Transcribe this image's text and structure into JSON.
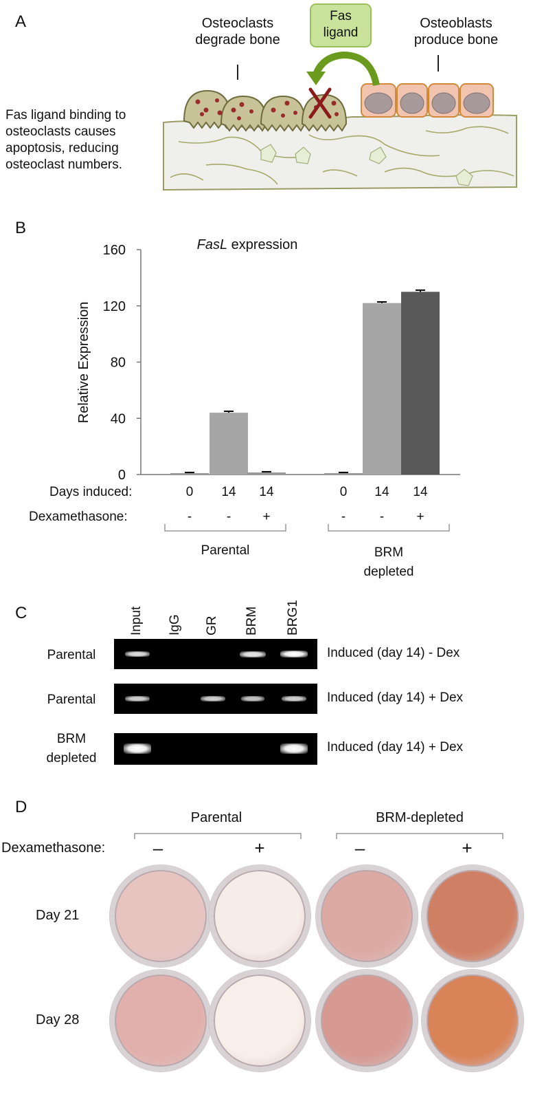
{
  "panelA": {
    "letter": "A",
    "osteoclasts_label": [
      "Osteoclasts",
      "degrade bone"
    ],
    "fas_label": [
      "Fas",
      "ligand"
    ],
    "osteoblasts_label": [
      "Osteoblasts",
      "produce bone"
    ],
    "description": [
      "Fas ligand binding to",
      "osteoclasts causes",
      "apoptosis, reducing",
      "osteoclast numbers."
    ],
    "colors": {
      "osteoclast": "#c9c39a",
      "osteoclast_dot": "#9a2b2b",
      "osteoblast": "#f1c4b0",
      "arrow": "#6a9a1e",
      "fas_box": "#c9e39a",
      "cross": "#8b1a1a"
    }
  },
  "panelB": {
    "letter": "B",
    "rows": {
      "days_label": "Days induced:",
      "dex_label": "Dexamethasone:",
      "days": [
        "0",
        "14",
        "14",
        "0",
        "14",
        "14"
      ],
      "dex": [
        "-",
        "-",
        "+",
        "-",
        "-",
        "+"
      ]
    },
    "groups": {
      "parental": "Parental",
      "brm": [
        "BRM",
        "depleted"
      ]
    }
  },
  "chart_data": {
    "type": "bar",
    "title_italic": "FasL",
    "title_rest": " expression",
    "ylabel": "Relative Expression",
    "ylim": [
      0,
      160
    ],
    "yticks": [
      "0",
      "40",
      "80",
      "120",
      "160"
    ],
    "values": [
      1,
      44,
      1.5,
      1,
      122,
      130
    ],
    "errors": [
      0.5,
      1,
      0.5,
      0.5,
      0.8,
      1.2
    ],
    "colors": [
      "#999999",
      "#a6a6a6",
      "#999999",
      "#999999",
      "#a6a6a6",
      "#595959"
    ]
  },
  "panelC": {
    "letter": "C",
    "lanes": [
      "Input",
      "IgG",
      "GR",
      "BRM",
      "BRG1"
    ],
    "rows": [
      {
        "left": [
          "Parental"
        ],
        "right": "Induced (day 14) - Dex",
        "bands": [
          0.7,
          0,
          0,
          0.8,
          1.0
        ]
      },
      {
        "left": [
          "Parental"
        ],
        "right": "Induced (day 14) + Dex",
        "bands": [
          0.6,
          0,
          0.6,
          0.5,
          0.6
        ]
      },
      {
        "left": [
          "BRM",
          "depleted"
        ],
        "right": "Induced (day 14) + Dex",
        "bands": [
          1.0,
          0,
          0,
          0,
          1.0
        ]
      }
    ]
  },
  "panelD": {
    "letter": "D",
    "group_parental": "Parental",
    "group_brm": "BRM-depleted",
    "dex_label": "Dexamethasone:",
    "dex_signs": [
      "–",
      "+",
      "–",
      "+"
    ],
    "rows": [
      {
        "label": "Day 21",
        "colors": [
          "#e7c4c0",
          "#f6ece8",
          "#dcaaa3",
          "#cf7f63"
        ]
      },
      {
        "label": "Day 28",
        "colors": [
          "#e2b0ac",
          "#f8efea",
          "#d69a93",
          "#d88358"
        ]
      }
    ]
  }
}
